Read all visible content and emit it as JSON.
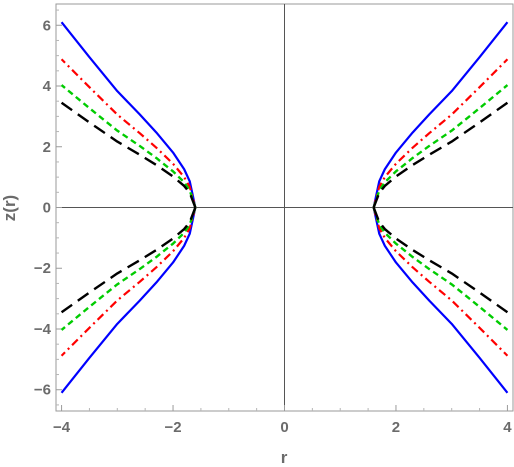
{
  "chart_data": {
    "type": "line",
    "xlabel": "r",
    "ylabel": "z(r)",
    "xlim": [
      -4.1,
      4.1
    ],
    "ylim": [
      -6.7,
      6.7
    ],
    "x_ticks": [
      -4,
      -2,
      0,
      2,
      4
    ],
    "x_tick_labels": [
      "−4",
      "−2",
      "0",
      "2",
      "4"
    ],
    "y_ticks": [
      -6,
      -4,
      -2,
      0,
      2,
      4,
      6
    ],
    "y_tick_labels": [
      "−6",
      "−4",
      "−2",
      "0",
      "2",
      "4",
      "6"
    ],
    "grid": false,
    "frame": true,
    "axes_through_origin": true,
    "throat_radius": 1.6,
    "series": [
      {
        "color": "#0000ff",
        "style": "solid",
        "r": [
          1.6,
          1.7,
          1.8,
          2.0,
          2.3,
          2.6,
          3.0,
          3.5,
          4.0
        ],
        "z": [
          0,
          0.86,
          1.26,
          1.81,
          2.47,
          3.07,
          3.83,
          4.95,
          6.1
        ]
      },
      {
        "color": "#ff0000",
        "style": "dashdot",
        "r": [
          1.6,
          1.7,
          1.8,
          2.0,
          2.3,
          2.6,
          3.0,
          3.5,
          4.0
        ],
        "z": [
          0,
          0.68,
          1.0,
          1.44,
          1.97,
          2.45,
          3.06,
          3.96,
          4.88
        ]
      },
      {
        "color": "#00cc00",
        "style": "dashed",
        "r": [
          1.6,
          1.7,
          1.8,
          2.0,
          2.3,
          2.6,
          3.0,
          3.5,
          4.0
        ],
        "z": [
          0,
          0.56,
          0.83,
          1.19,
          1.63,
          2.03,
          2.53,
          3.27,
          4.03
        ]
      },
      {
        "color": "#000000",
        "style": "longdash",
        "r": [
          1.6,
          1.7,
          1.8,
          2.0,
          2.3,
          2.6,
          3.0,
          3.5,
          4.0
        ],
        "z": [
          0,
          0.48,
          0.71,
          1.02,
          1.4,
          1.74,
          2.17,
          2.8,
          3.45
        ]
      }
    ]
  }
}
